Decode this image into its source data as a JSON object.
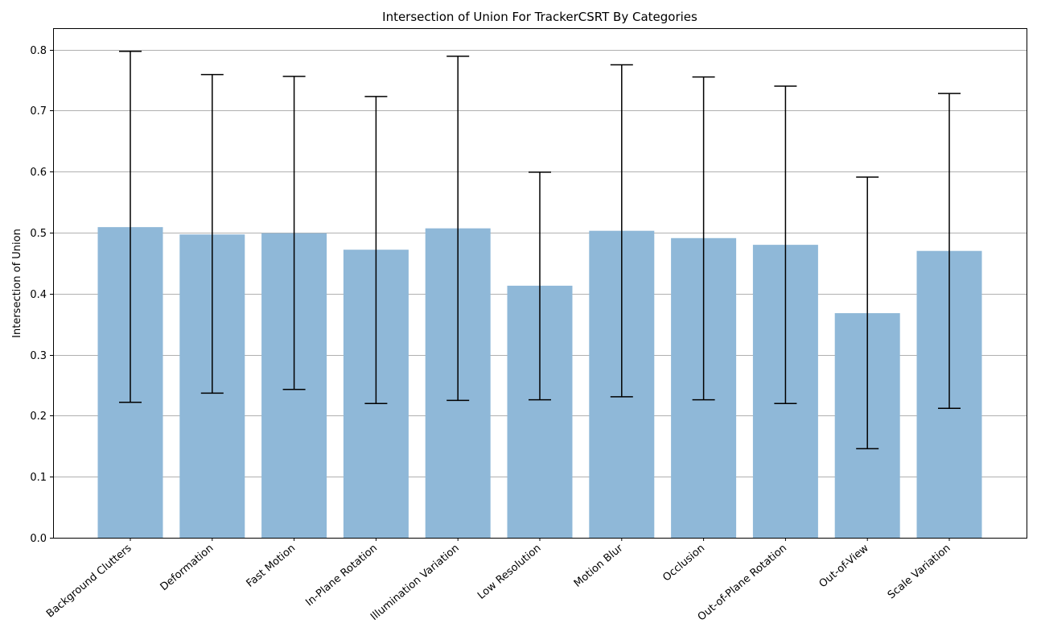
{
  "chart_data": {
    "type": "bar",
    "title": "Intersection of Union For TrackerCSRT By Categories",
    "xlabel": "",
    "ylabel": "Intersection of Union",
    "ylim": [
      0,
      0.835
    ],
    "yticks": [
      "0.0",
      "0.1",
      "0.2",
      "0.3",
      "0.4",
      "0.5",
      "0.6",
      "0.7",
      "0.8"
    ],
    "grid": true,
    "categories": [
      "Background Clutters",
      "Deformation",
      "Fast Motion",
      "In-Plane Rotation",
      "Illumination Variation",
      "Low Resolution",
      "Motion Blur",
      "Occlusion",
      "Out-of-Plane Rotation",
      "Out-of-View",
      "Scale Variation"
    ],
    "values": [
      0.509,
      0.497,
      0.499,
      0.472,
      0.507,
      0.413,
      0.503,
      0.491,
      0.48,
      0.368,
      0.47
    ],
    "error_low": [
      0.222,
      0.237,
      0.243,
      0.22,
      0.225,
      0.226,
      0.231,
      0.226,
      0.22,
      0.146,
      0.212
    ],
    "error_high": [
      0.797,
      0.759,
      0.756,
      0.723,
      0.789,
      0.599,
      0.775,
      0.755,
      0.74,
      0.591,
      0.728
    ],
    "bar_color": "#8fb8d8",
    "error_color": "#000000"
  }
}
